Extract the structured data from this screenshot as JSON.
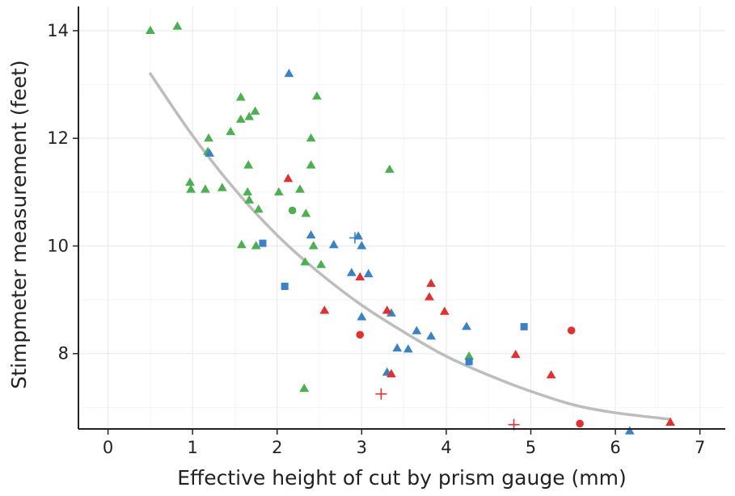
{
  "chart_data": {
    "type": "scatter",
    "title": "",
    "xlabel": "Effective height of cut by prism gauge (mm)",
    "ylabel": "Stimpmeter measurement (feet)",
    "xlim": [
      -0.35,
      7.3
    ],
    "ylim": [
      6.6,
      14.45
    ],
    "x_ticks": [
      "0",
      "1",
      "2",
      "3",
      "4",
      "5",
      "6",
      "7"
    ],
    "y_ticks": [
      "8",
      "10",
      "12",
      "14"
    ],
    "grid": true,
    "legend": "none",
    "colors": {
      "green": "#4caf50",
      "blue": "#3a82c4",
      "red": "#e03030",
      "trend": "#bdbdbd",
      "axis": "#222222",
      "grid": "#ebebeb"
    },
    "trend_line": {
      "x": [
        0.5,
        1.0,
        1.5,
        2.0,
        2.5,
        3.0,
        3.5,
        4.0,
        4.5,
        5.0,
        5.5,
        6.0,
        6.65
      ],
      "y": [
        13.2,
        12.05,
        11.05,
        10.2,
        9.5,
        8.9,
        8.4,
        7.95,
        7.6,
        7.3,
        7.05,
        6.9,
        6.78
      ]
    },
    "series": [
      {
        "color": "green",
        "points": [
          {
            "x": 0.5,
            "y": 14.0,
            "shape": "triangle"
          },
          {
            "x": 0.82,
            "y": 14.08,
            "shape": "triangle"
          },
          {
            "x": 0.97,
            "y": 11.18,
            "shape": "triangle"
          },
          {
            "x": 0.98,
            "y": 11.05,
            "shape": "triangle"
          },
          {
            "x": 1.15,
            "y": 11.05,
            "shape": "triangle"
          },
          {
            "x": 1.19,
            "y": 12.0,
            "shape": "triangle"
          },
          {
            "x": 1.18,
            "y": 11.75,
            "shape": "triangle"
          },
          {
            "x": 1.35,
            "y": 11.08,
            "shape": "triangle"
          },
          {
            "x": 1.45,
            "y": 12.12,
            "shape": "triangle"
          },
          {
            "x": 1.57,
            "y": 12.76,
            "shape": "triangle"
          },
          {
            "x": 1.57,
            "y": 12.35,
            "shape": "triangle"
          },
          {
            "x": 1.58,
            "y": 10.02,
            "shape": "triangle"
          },
          {
            "x": 1.67,
            "y": 12.4,
            "shape": "triangle"
          },
          {
            "x": 1.66,
            "y": 11.5,
            "shape": "triangle"
          },
          {
            "x": 1.65,
            "y": 11.0,
            "shape": "triangle"
          },
          {
            "x": 1.67,
            "y": 10.85,
            "shape": "triangle"
          },
          {
            "x": 1.74,
            "y": 12.5,
            "shape": "triangle"
          },
          {
            "x": 1.75,
            "y": 10.0,
            "shape": "triangle"
          },
          {
            "x": 1.78,
            "y": 10.68,
            "shape": "triangle"
          },
          {
            "x": 2.02,
            "y": 11.0,
            "shape": "triangle"
          },
          {
            "x": 2.18,
            "y": 10.66,
            "shape": "circle"
          },
          {
            "x": 2.27,
            "y": 11.05,
            "shape": "triangle"
          },
          {
            "x": 2.33,
            "y": 9.7,
            "shape": "triangle"
          },
          {
            "x": 2.34,
            "y": 10.6,
            "shape": "triangle"
          },
          {
            "x": 2.4,
            "y": 12.0,
            "shape": "triangle"
          },
          {
            "x": 2.4,
            "y": 11.5,
            "shape": "triangle"
          },
          {
            "x": 2.43,
            "y": 10.0,
            "shape": "triangle"
          },
          {
            "x": 2.47,
            "y": 12.78,
            "shape": "triangle"
          },
          {
            "x": 2.52,
            "y": 9.65,
            "shape": "triangle"
          },
          {
            "x": 2.32,
            "y": 7.35,
            "shape": "triangle"
          },
          {
            "x": 3.33,
            "y": 11.42,
            "shape": "triangle"
          },
          {
            "x": 4.27,
            "y": 7.95,
            "shape": "triangle"
          }
        ]
      },
      {
        "color": "blue",
        "points": [
          {
            "x": 1.2,
            "y": 11.72,
            "shape": "triangle"
          },
          {
            "x": 1.83,
            "y": 10.05,
            "shape": "square"
          },
          {
            "x": 2.09,
            "y": 9.25,
            "shape": "square"
          },
          {
            "x": 2.14,
            "y": 13.2,
            "shape": "triangle"
          },
          {
            "x": 2.4,
            "y": 10.2,
            "shape": "triangle"
          },
          {
            "x": 2.67,
            "y": 10.02,
            "shape": "triangle"
          },
          {
            "x": 2.88,
            "y": 9.5,
            "shape": "triangle"
          },
          {
            "x": 2.92,
            "y": 10.15,
            "shape": "plus"
          },
          {
            "x": 2.96,
            "y": 10.18,
            "shape": "triangle"
          },
          {
            "x": 3.0,
            "y": 10.0,
            "shape": "triangle"
          },
          {
            "x": 3.0,
            "y": 8.68,
            "shape": "triangle"
          },
          {
            "x": 3.08,
            "y": 9.48,
            "shape": "triangle"
          },
          {
            "x": 3.3,
            "y": 7.65,
            "shape": "triangle"
          },
          {
            "x": 3.35,
            "y": 8.75,
            "shape": "triangle"
          },
          {
            "x": 3.42,
            "y": 8.1,
            "shape": "triangle"
          },
          {
            "x": 3.55,
            "y": 8.08,
            "shape": "triangle"
          },
          {
            "x": 3.65,
            "y": 8.42,
            "shape": "triangle"
          },
          {
            "x": 3.82,
            "y": 8.32,
            "shape": "triangle"
          },
          {
            "x": 4.24,
            "y": 8.5,
            "shape": "triangle"
          },
          {
            "x": 4.27,
            "y": 7.85,
            "shape": "square"
          },
          {
            "x": 4.92,
            "y": 8.5,
            "shape": "square"
          },
          {
            "x": 6.17,
            "y": 6.56,
            "shape": "triangle"
          }
        ]
      },
      {
        "color": "red",
        "points": [
          {
            "x": 2.13,
            "y": 11.25,
            "shape": "triangle"
          },
          {
            "x": 2.56,
            "y": 8.8,
            "shape": "triangle"
          },
          {
            "x": 2.98,
            "y": 9.42,
            "shape": "triangle"
          },
          {
            "x": 2.98,
            "y": 8.35,
            "shape": "circle"
          },
          {
            "x": 3.23,
            "y": 7.25,
            "shape": "plus"
          },
          {
            "x": 3.3,
            "y": 8.8,
            "shape": "triangle"
          },
          {
            "x": 3.35,
            "y": 7.62,
            "shape": "triangle"
          },
          {
            "x": 3.8,
            "y": 9.05,
            "shape": "triangle"
          },
          {
            "x": 3.82,
            "y": 9.3,
            "shape": "triangle"
          },
          {
            "x": 3.98,
            "y": 8.78,
            "shape": "triangle"
          },
          {
            "x": 4.8,
            "y": 6.68,
            "shape": "plus"
          },
          {
            "x": 4.82,
            "y": 7.98,
            "shape": "triangle"
          },
          {
            "x": 5.24,
            "y": 7.6,
            "shape": "triangle"
          },
          {
            "x": 5.48,
            "y": 8.43,
            "shape": "circle"
          },
          {
            "x": 5.58,
            "y": 6.7,
            "shape": "circle"
          },
          {
            "x": 6.65,
            "y": 6.72,
            "shape": "triangle"
          }
        ]
      }
    ]
  }
}
